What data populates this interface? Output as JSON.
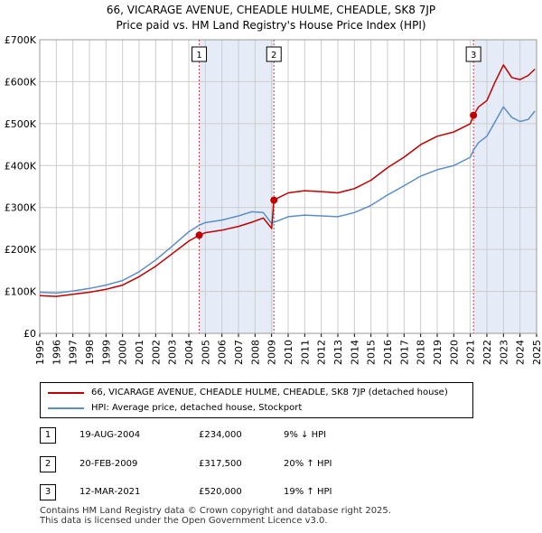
{
  "title_line1": "66, VICARAGE AVENUE, CHEADLE HULME, CHEADLE, SK8 7JP",
  "title_line2": "Price paid vs. HM Land Registry's House Price Index (HPI)",
  "colors": {
    "property": "#c00000",
    "hpi": "#5b8ec7",
    "shade": "#e6ecf7",
    "grid": "#cccccc"
  },
  "chart_data": {
    "type": "line",
    "ylim": [
      0,
      700000
    ],
    "xlim": [
      1995,
      2025
    ],
    "yticks": [
      0,
      100000,
      200000,
      300000,
      400000,
      500000,
      600000,
      700000
    ],
    "ytick_labels": [
      "£0",
      "£100K",
      "£200K",
      "£300K",
      "£400K",
      "£500K",
      "£600K",
      "£700K"
    ],
    "xticks": [
      "1995",
      "1996",
      "1997",
      "1998",
      "1999",
      "2000",
      "2001",
      "2002",
      "2003",
      "2004",
      "2005",
      "2006",
      "2007",
      "2008",
      "2009",
      "2010",
      "2011",
      "2012",
      "2013",
      "2014",
      "2015",
      "2016",
      "2017",
      "2018",
      "2019",
      "2020",
      "2021",
      "2022",
      "2023",
      "2024",
      "2025"
    ],
    "series": [
      {
        "name": "66, VICARAGE AVENUE, CHEADLE HULME, CHEADLE, SK8 7JP (detached house)",
        "x": [
          1995.0,
          1996.0,
          1997.0,
          1998.0,
          1999.0,
          2000.0,
          2001.0,
          2002.0,
          2003.0,
          2004.0,
          2004.63,
          2005.0,
          2006.0,
          2007.0,
          2007.8,
          2008.5,
          2009.0,
          2009.14,
          2009.5,
          2010.0,
          2011.0,
          2012.0,
          2013.0,
          2014.0,
          2015.0,
          2016.0,
          2017.0,
          2018.0,
          2019.0,
          2020.0,
          2021.0,
          2021.19,
          2021.5,
          2022.0,
          2022.5,
          2023.0,
          2023.5,
          2024.0,
          2024.5,
          2024.9
        ],
        "y": [
          90000,
          88000,
          93000,
          98000,
          105000,
          115000,
          135000,
          160000,
          190000,
          220000,
          234000,
          240000,
          246000,
          255000,
          265000,
          275000,
          250000,
          317500,
          325000,
          335000,
          340000,
          338000,
          335000,
          345000,
          365000,
          395000,
          420000,
          450000,
          470000,
          480000,
          500000,
          520000,
          540000,
          555000,
          600000,
          640000,
          610000,
          605000,
          615000,
          630000
        ]
      },
      {
        "name": "HPI: Average price, detached house, Stockport",
        "x": [
          1995.0,
          1996.0,
          1997.0,
          1998.0,
          1999.0,
          2000.0,
          2001.0,
          2002.0,
          2003.0,
          2004.0,
          2004.63,
          2005.0,
          2006.0,
          2007.0,
          2007.8,
          2008.5,
          2009.0,
          2009.14,
          2009.5,
          2010.0,
          2011.0,
          2012.0,
          2013.0,
          2014.0,
          2015.0,
          2016.0,
          2017.0,
          2018.0,
          2019.0,
          2020.0,
          2021.0,
          2021.19,
          2021.5,
          2022.0,
          2022.5,
          2023.0,
          2023.5,
          2024.0,
          2024.5,
          2024.9
        ],
        "y": [
          98000,
          96000,
          101000,
          107000,
          115000,
          126000,
          147000,
          175000,
          208000,
          242000,
          258000,
          264000,
          270000,
          280000,
          290000,
          288000,
          262000,
          265000,
          270000,
          278000,
          282000,
          280000,
          278000,
          288000,
          305000,
          330000,
          352000,
          375000,
          390000,
          400000,
          420000,
          437000,
          455000,
          470000,
          505000,
          540000,
          515000,
          505000,
          510000,
          530000
        ]
      }
    ],
    "sales": [
      {
        "label": "1",
        "x": 2004.63,
        "y": 234000
      },
      {
        "label": "2",
        "x": 2009.14,
        "y": 317500
      },
      {
        "label": "3",
        "x": 2021.19,
        "y": 520000
      }
    ],
    "shaded_ranges": [
      [
        2004.63,
        2009.14
      ],
      [
        2021.19,
        2025.0
      ]
    ]
  },
  "legend": {
    "property_label": "66, VICARAGE AVENUE, CHEADLE HULME, CHEADLE, SK8 7JP (detached house)",
    "hpi_label": "HPI: Average price, detached house, Stockport"
  },
  "transactions": [
    {
      "num": "1",
      "date": "19-AUG-2004",
      "price": "£234,000",
      "hpi": "9% ↓ HPI"
    },
    {
      "num": "2",
      "date": "20-FEB-2009",
      "price": "£317,500",
      "hpi": "20% ↑ HPI"
    },
    {
      "num": "3",
      "date": "12-MAR-2021",
      "price": "£520,000",
      "hpi": "19% ↑ HPI"
    }
  ],
  "footer_line1": "Contains HM Land Registry data © Crown copyright and database right 2025.",
  "footer_line2": "This data is licensed under the Open Government Licence v3.0."
}
